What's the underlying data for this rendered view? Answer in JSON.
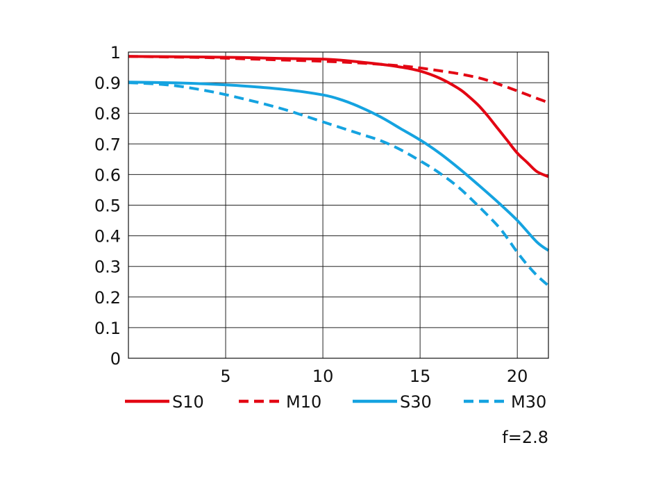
{
  "chart_data": {
    "type": "line",
    "xlim": [
      0,
      21.6
    ],
    "ylim": [
      0,
      1
    ],
    "x_ticks": [
      5,
      10,
      15,
      20
    ],
    "y_ticks": [
      0,
      0.1,
      0.2,
      0.3,
      0.4,
      0.5,
      0.6,
      0.7,
      0.8,
      0.9,
      1
    ],
    "x_tick_labels": [
      "5",
      "10",
      "15",
      "20"
    ],
    "y_tick_labels": [
      "0",
      "0.1",
      "0.2",
      "0.3",
      "0.4",
      "0.5",
      "0.6",
      "0.7",
      "0.8",
      "0.9",
      "1"
    ],
    "grid": true,
    "legend_position": "bottom",
    "annotation": "f=2.8",
    "series": [
      {
        "name": "S10",
        "color": "#e30613",
        "dash": "solid",
        "x": [
          0,
          2,
          4,
          6,
          8,
          10,
          11,
          12,
          13,
          14,
          15,
          16,
          17,
          17.5,
          18,
          18.5,
          19,
          19.5,
          20,
          20.5,
          21,
          21.6
        ],
        "y": [
          0.986,
          0.985,
          0.984,
          0.982,
          0.979,
          0.977,
          0.973,
          0.967,
          0.96,
          0.951,
          0.938,
          0.915,
          0.88,
          0.855,
          0.826,
          0.79,
          0.75,
          0.71,
          0.67,
          0.64,
          0.61,
          0.593
        ]
      },
      {
        "name": "M10",
        "color": "#e30613",
        "dash": "dashed",
        "x": [
          0,
          2,
          4,
          6,
          8,
          10,
          12,
          14,
          15,
          16,
          17,
          18,
          18.5,
          19,
          19.5,
          20,
          20.5,
          21,
          21.6
        ],
        "y": [
          0.986,
          0.984,
          0.982,
          0.978,
          0.974,
          0.97,
          0.964,
          0.955,
          0.948,
          0.939,
          0.929,
          0.916,
          0.907,
          0.896,
          0.885,
          0.873,
          0.861,
          0.849,
          0.835
        ]
      },
      {
        "name": "S30",
        "color": "#15a3e0",
        "dash": "solid",
        "x": [
          0,
          2,
          4,
          6,
          8,
          10,
          11,
          12,
          13,
          14,
          15,
          16,
          17,
          18,
          19,
          20,
          21,
          21.6
        ],
        "y": [
          0.902,
          0.9,
          0.896,
          0.889,
          0.878,
          0.86,
          0.843,
          0.818,
          0.787,
          0.75,
          0.713,
          0.67,
          0.62,
          0.566,
          0.51,
          0.45,
          0.38,
          0.352
        ]
      },
      {
        "name": "M30",
        "color": "#15a3e0",
        "dash": "dashed",
        "x": [
          0,
          2,
          4,
          6,
          8,
          10,
          12,
          13,
          14,
          15,
          16,
          17,
          18,
          19,
          19.5,
          20,
          20.5,
          21,
          21.6
        ],
        "y": [
          0.9,
          0.893,
          0.874,
          0.846,
          0.813,
          0.772,
          0.731,
          0.71,
          0.681,
          0.645,
          0.605,
          0.557,
          0.497,
          0.432,
          0.391,
          0.346,
          0.306,
          0.271,
          0.237
        ]
      }
    ]
  }
}
